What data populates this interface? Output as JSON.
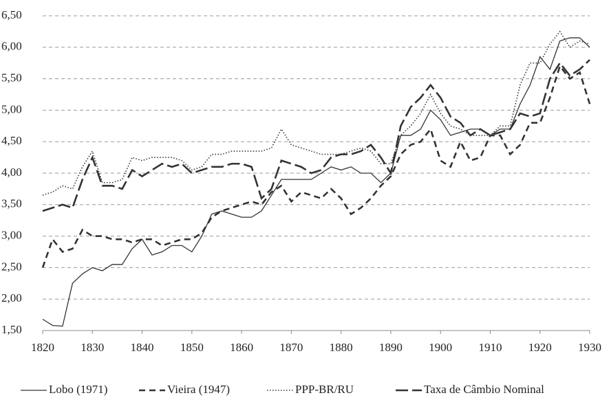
{
  "chart_data": {
    "type": "line",
    "x": [
      1820,
      1822,
      1824,
      1826,
      1828,
      1830,
      1832,
      1834,
      1836,
      1838,
      1840,
      1842,
      1844,
      1846,
      1848,
      1850,
      1852,
      1854,
      1856,
      1858,
      1860,
      1862,
      1864,
      1866,
      1868,
      1870,
      1872,
      1874,
      1876,
      1878,
      1880,
      1882,
      1884,
      1886,
      1888,
      1890,
      1892,
      1894,
      1896,
      1898,
      1900,
      1902,
      1904,
      1906,
      1908,
      1910,
      1912,
      1914,
      1916,
      1918,
      1920,
      1922,
      1924,
      1926,
      1928,
      1930
    ],
    "xlim": [
      1820,
      1930
    ],
    "xticks": [
      1820,
      1830,
      1840,
      1850,
      1860,
      1870,
      1880,
      1890,
      1900,
      1910,
      1920,
      1930
    ],
    "ylim": [
      1.5,
      6.5
    ],
    "yticks": [
      {
        "value": 1.5,
        "label": "1,50"
      },
      {
        "value": 2,
        "label": "2,00"
      },
      {
        "value": 2.5,
        "label": "2,50"
      },
      {
        "value": 3,
        "label": "3,00"
      },
      {
        "value": 3.5,
        "label": "3,50"
      },
      {
        "value": 4,
        "label": "4,00"
      },
      {
        "value": 4.5,
        "label": "4,50"
      },
      {
        "value": 5,
        "label": "5,00"
      },
      {
        "value": 5.5,
        "label": "5,50"
      },
      {
        "value": 6,
        "label": "6,00"
      },
      {
        "value": 6.5,
        "label": "6,50"
      }
    ],
    "grid": true,
    "legend": "bottom",
    "series": [
      {
        "name": "Lobo (1971)",
        "color": "#333333",
        "dash": "solid",
        "values": [
          1.68,
          1.58,
          1.57,
          2.25,
          2.4,
          2.5,
          2.45,
          2.55,
          2.55,
          2.8,
          2.95,
          2.7,
          2.75,
          2.85,
          2.85,
          2.75,
          3.0,
          3.35,
          3.4,
          3.35,
          3.3,
          3.3,
          3.4,
          3.65,
          3.9,
          3.9,
          3.9,
          3.9,
          4.0,
          4.1,
          4.05,
          4.1,
          4.0,
          4.0,
          3.85,
          4.0,
          4.6,
          4.6,
          4.7,
          5.0,
          4.85,
          4.6,
          4.65,
          4.7,
          4.7,
          4.6,
          4.7,
          4.7,
          5.1,
          5.4,
          5.85,
          5.65,
          6.1,
          6.15,
          6.15,
          6.0
        ]
      },
      {
        "name": "Vieira (1947)",
        "color": "#333333",
        "dash": "dashed",
        "values": [
          2.5,
          2.95,
          2.75,
          2.8,
          3.1,
          3.0,
          3.0,
          2.95,
          2.95,
          2.9,
          2.95,
          2.95,
          2.85,
          2.9,
          2.95,
          2.95,
          3.05,
          3.3,
          3.4,
          3.45,
          3.5,
          3.55,
          3.5,
          3.7,
          3.8,
          3.55,
          3.7,
          3.65,
          3.6,
          3.75,
          3.6,
          3.35,
          3.45,
          3.6,
          3.8,
          3.95,
          4.3,
          4.45,
          4.5,
          4.7,
          4.2,
          4.1,
          4.5,
          4.2,
          4.25,
          4.6,
          4.6,
          4.3,
          4.45,
          4.8,
          4.8,
          5.2,
          5.7,
          5.5,
          5.6,
          5.1
        ]
      },
      {
        "name": "PPP-BR/RU",
        "color": "#333333",
        "dash": "dotted",
        "values": [
          3.65,
          3.7,
          3.8,
          3.75,
          4.1,
          4.35,
          3.85,
          3.85,
          3.9,
          4.25,
          4.2,
          4.25,
          4.25,
          4.25,
          4.2,
          4.05,
          4.1,
          4.3,
          4.3,
          4.35,
          4.35,
          4.35,
          4.35,
          4.4,
          4.7,
          4.45,
          4.4,
          4.35,
          4.3,
          4.3,
          4.3,
          4.35,
          4.4,
          4.35,
          4.15,
          4.15,
          4.6,
          4.75,
          4.95,
          5.25,
          4.95,
          4.75,
          4.7,
          4.6,
          4.6,
          4.6,
          4.75,
          4.75,
          5.4,
          5.75,
          5.75,
          6.05,
          6.25,
          6.0,
          6.1,
          6.05
        ]
      },
      {
        "name": "Taxa de Câmbio Nominal",
        "color": "#333333",
        "dash": "longdash",
        "values": [
          3.4,
          3.45,
          3.5,
          3.45,
          3.9,
          4.25,
          3.8,
          3.8,
          3.75,
          4.05,
          3.95,
          4.05,
          4.15,
          4.1,
          4.15,
          4.0,
          4.05,
          4.1,
          4.1,
          4.15,
          4.15,
          4.1,
          3.6,
          3.75,
          4.2,
          4.15,
          4.1,
          4.0,
          4.05,
          4.25,
          4.3,
          4.3,
          4.35,
          4.45,
          4.25,
          4.0,
          4.75,
          5.05,
          5.2,
          5.4,
          5.2,
          4.9,
          4.8,
          4.6,
          4.7,
          4.6,
          4.65,
          4.7,
          4.95,
          4.9,
          4.95,
          5.5,
          5.75,
          5.55,
          5.65,
          5.8
        ]
      }
    ]
  }
}
